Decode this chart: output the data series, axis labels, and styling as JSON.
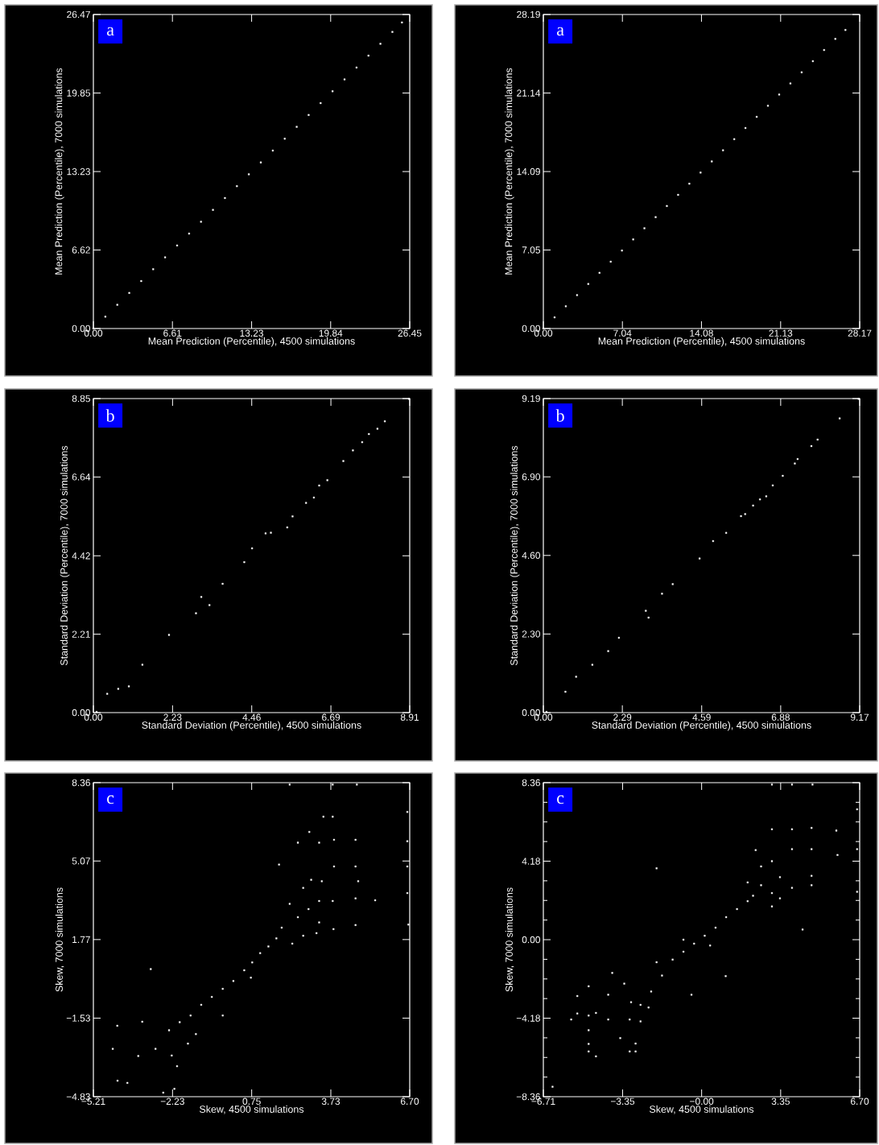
{
  "chart_data": [
    {
      "type": "scatter",
      "xlabel": "Mean Prediction (Percentile), 4500 simulations",
      "ylabel": "Mean Prediction (Percentile), 7000 simulations",
      "annotations": [
        "a"
      ],
      "marker": "square",
      "color": "#ffffff",
      "xlim": [
        0,
        26.45
      ],
      "ylim": [
        0,
        26.47
      ],
      "xticks": [
        {
          "value": 0,
          "label": "0.00"
        },
        {
          "value": 6.61,
          "label": "6.61"
        },
        {
          "value": 13.23,
          "label": "13.23"
        },
        {
          "value": 19.84,
          "label": "19.84"
        },
        {
          "value": 26.45,
          "label": "26.45"
        }
      ],
      "yticks": [
        {
          "value": 0,
          "label": "0.00"
        },
        {
          "value": 6.62,
          "label": "6.62"
        },
        {
          "value": 13.23,
          "label": "13.23"
        },
        {
          "value": 19.85,
          "label": "19.85"
        },
        {
          "value": 26.47,
          "label": "26.47"
        }
      ],
      "x": [
        0.0,
        1.0,
        2.0,
        3.0,
        4.0,
        5.0,
        6.0,
        7.0,
        8.0,
        9.0,
        10.0,
        11.0,
        12.0,
        13.0,
        14.0,
        15.0,
        16.0,
        17.0,
        18.0,
        19.0,
        20.0,
        21.0,
        22.0,
        23.0,
        24.0,
        25.0,
        25.8
      ],
      "values": [
        0.0,
        1.0,
        2.0,
        3.0,
        4.0,
        5.0,
        6.0,
        7.0,
        8.0,
        9.0,
        10.0,
        11.0,
        12.0,
        13.0,
        14.0,
        15.0,
        16.0,
        17.0,
        18.0,
        19.0,
        20.0,
        21.0,
        22.0,
        23.0,
        24.0,
        25.0,
        25.8
      ]
    },
    {
      "type": "scatter",
      "xlabel": "Mean Prediction (Percentile), 4500 simulations",
      "ylabel": "Mean Prediction (Percentile), 7000 simulations",
      "annotations": [
        "a"
      ],
      "marker": "square",
      "color": "#ffffff",
      "xlim": [
        0,
        28.17
      ],
      "ylim": [
        0,
        28.19
      ],
      "xticks": [
        {
          "value": 0,
          "label": "0.00"
        },
        {
          "value": 7.04,
          "label": "7.04"
        },
        {
          "value": 14.08,
          "label": "14.08"
        },
        {
          "value": 21.13,
          "label": "21.13"
        },
        {
          "value": 28.17,
          "label": "28.17"
        }
      ],
      "yticks": [
        {
          "value": 0,
          "label": "0.00"
        },
        {
          "value": 7.05,
          "label": "7.05"
        },
        {
          "value": 14.09,
          "label": "14.09"
        },
        {
          "value": 21.14,
          "label": "21.14"
        },
        {
          "value": 28.19,
          "label": "28.19"
        }
      ],
      "x": [
        0.0,
        1.0,
        2.0,
        3.0,
        4.0,
        5.0,
        6.0,
        7.0,
        8.0,
        9.0,
        10.0,
        11.0,
        12.0,
        13.0,
        14.0,
        15.0,
        16.0,
        17.0,
        18.0,
        19.0,
        20.0,
        21.0,
        22.0,
        23.0,
        24.0,
        25.0,
        26.0,
        26.9
      ],
      "values": [
        0.0,
        1.0,
        2.0,
        3.0,
        4.0,
        5.0,
        6.0,
        7.0,
        8.0,
        9.0,
        10.0,
        11.0,
        12.0,
        13.0,
        14.0,
        15.0,
        16.0,
        17.0,
        18.0,
        19.0,
        20.0,
        21.0,
        22.0,
        23.0,
        24.0,
        25.0,
        26.0,
        26.8
      ]
    },
    {
      "type": "scatter",
      "xlabel": "Standard Deviation (Percentile), 4500 simulations",
      "ylabel": "Standard Deviation (Percentile), 7000 simulations",
      "annotations": [
        "b"
      ],
      "marker": "square",
      "color": "#ffffff",
      "xlim": [
        0,
        8.91
      ],
      "ylim": [
        0,
        8.85
      ],
      "xticks": [
        {
          "value": 0,
          "label": "0.00"
        },
        {
          "value": 2.23,
          "label": "2.23"
        },
        {
          "value": 4.46,
          "label": "4.46"
        },
        {
          "value": 6.69,
          "label": "6.69"
        },
        {
          "value": 8.91,
          "label": "8.91"
        }
      ],
      "yticks": [
        {
          "value": 0,
          "label": "0.00"
        },
        {
          "value": 2.21,
          "label": "2.21"
        },
        {
          "value": 4.42,
          "label": "4.42"
        },
        {
          "value": 6.64,
          "label": "6.64"
        },
        {
          "value": 8.85,
          "label": "8.85"
        }
      ],
      "x": [
        0.09,
        0.39,
        0.7,
        1.0,
        1.38,
        2.13,
        2.89,
        3.04,
        3.27,
        3.64,
        4.25,
        4.47,
        4.85,
        5.0,
        5.46,
        5.61,
        5.99,
        6.21,
        6.36,
        6.59,
        7.04,
        7.31,
        7.57,
        7.76,
        8.0,
        8.21,
        8.89
      ],
      "values": [
        0.02,
        0.53,
        0.67,
        0.74,
        1.35,
        2.19,
        2.8,
        3.26,
        3.03,
        3.63,
        4.24,
        4.63,
        5.05,
        5.07,
        5.22,
        5.53,
        5.91,
        6.06,
        6.4,
        6.55,
        7.09,
        7.39,
        7.62,
        7.85,
        8.0,
        8.21,
        8.84
      ]
    },
    {
      "type": "scatter",
      "xlabel": "Standard Deviation (Percentile), 4500 simulations",
      "ylabel": "Standard Deviation (Percentile), 7000 simulations",
      "annotations": [
        "b"
      ],
      "marker": "square",
      "color": "#ffffff",
      "xlim": [
        0,
        9.17
      ],
      "ylim": [
        0,
        9.19
      ],
      "xticks": [
        {
          "value": 0,
          "label": "0.00"
        },
        {
          "value": 2.29,
          "label": "2.29"
        },
        {
          "value": 4.59,
          "label": "4.59"
        },
        {
          "value": 6.88,
          "label": "6.88"
        },
        {
          "value": 9.17,
          "label": "9.17"
        }
      ],
      "yticks": [
        {
          "value": 0,
          "label": "0.00"
        },
        {
          "value": 2.3,
          "label": "2.30"
        },
        {
          "value": 4.6,
          "label": "4.60"
        },
        {
          "value": 6.9,
          "label": "6.90"
        },
        {
          "value": 9.19,
          "label": "9.19"
        }
      ],
      "x": [
        0.09,
        0.64,
        0.95,
        1.42,
        1.88,
        2.19,
        2.97,
        3.05,
        3.44,
        3.75,
        4.53,
        4.92,
        5.3,
        5.73,
        5.85,
        6.08,
        6.28,
        6.46,
        6.65,
        6.94,
        7.29,
        7.37,
        7.77,
        7.95,
        8.59,
        9.14
      ],
      "values": [
        0.02,
        0.61,
        1.05,
        1.4,
        1.8,
        2.19,
        2.98,
        2.78,
        3.48,
        3.76,
        4.51,
        5.02,
        5.26,
        5.75,
        5.81,
        6.06,
        6.24,
        6.33,
        6.65,
        6.93,
        7.29,
        7.42,
        7.8,
        7.99,
        8.61,
        9.18
      ]
    },
    {
      "type": "scatter",
      "xlabel": "Skew, 4500 simulations",
      "ylabel": "Skew, 7000 simulations",
      "annotations": [
        "c"
      ],
      "marker": "square",
      "color": "#ffffff",
      "xlim": [
        -5.21,
        6.7
      ],
      "ylim": [
        -4.83,
        8.36
      ],
      "xticks": [
        {
          "value": -5.21,
          "label": "−5.21"
        },
        {
          "value": -2.23,
          "label": "−2.23"
        },
        {
          "value": 0.75,
          "label": "0.75"
        },
        {
          "value": 3.73,
          "label": "3.73"
        },
        {
          "value": 6.7,
          "label": "6.70"
        }
      ],
      "yticks": [
        {
          "value": -4.83,
          "label": "−4.83"
        },
        {
          "value": -1.53,
          "label": "−1.53"
        },
        {
          "value": 1.77,
          "label": "1.77"
        },
        {
          "value": 5.07,
          "label": "5.07"
        },
        {
          "value": 8.36,
          "label": "8.36"
        }
      ],
      "x": [
        -4.3,
        -3.93,
        -4.48,
        -4.31,
        -3.52,
        -3.05,
        -3.37,
        -2.87,
        -2.58,
        -2.16,
        -2.06,
        -2.26,
        -2.36,
        -1.96,
        -1.65,
        -1.35,
        -1.55,
        -1.15,
        -0.75,
        -0.34,
        0.06,
        0.47,
        0.77,
        1.07,
        1.38,
        1.68,
        -0.34,
        0.72,
        1.88,
        2.28,
        2.18,
        2.69,
        2.49,
        2.89,
        3.29,
        3.19,
        1.78,
        2.49,
        2.92,
        3.45,
        3.8,
        3.29,
        3.85,
        4.66,
        3.85,
        4.66,
        4.76,
        4.66,
        3.8,
        3.29,
        5.4,
        4.66,
        3.83,
        2.18,
        3.8,
        4.71,
        6.61,
        6.61,
        6.61,
        6.61,
        6.65,
        2.99,
        3.39,
        2.69
      ],
      "values": [
        -4.16,
        -4.25,
        -2.82,
        -1.85,
        -3.12,
        0.53,
        -1.68,
        -2.82,
        -4.66,
        -4.5,
        -3.55,
        -3.1,
        -2.04,
        -1.7,
        -2.6,
        -2.2,
        -1.42,
        -0.97,
        -0.64,
        -0.3,
        0.03,
        0.48,
        0.81,
        1.2,
        1.48,
        1.82,
        -1.42,
        0.17,
        2.27,
        1.6,
        3.27,
        1.93,
        2.71,
        3.05,
        2.49,
        2.04,
        4.92,
        5.84,
        6.29,
        6.93,
        6.93,
        5.84,
        5.96,
        5.96,
        4.84,
        4.84,
        4.22,
        3.5,
        3.39,
        3.39,
        3.42,
        2.38,
        2.21,
        8.28,
        8.28,
        8.28,
        7.13,
        5.9,
        4.84,
        3.72,
        2.4,
        4.28,
        4.22,
        3.94
      ]
    },
    {
      "type": "scatter",
      "xlabel": "Skew, 4500 simulations",
      "ylabel": "Skew, 7000 simulations",
      "annotations": [
        "c"
      ],
      "marker": "square",
      "color": "#ffffff",
      "xlim": [
        -6.71,
        6.7
      ],
      "ylim": [
        -8.36,
        8.36
      ],
      "xticks": [
        {
          "value": -6.71,
          "label": "−6.71"
        },
        {
          "value": -3.35,
          "label": "−3.35"
        },
        {
          "value": 0,
          "label": "−0.00"
        },
        {
          "value": 3.35,
          "label": "3.35"
        },
        {
          "value": 6.7,
          "label": "6.70"
        }
      ],
      "yticks": [
        {
          "value": -8.36,
          "label": "−8.36"
        },
        {
          "value": -4.18,
          "label": "−4.18"
        },
        {
          "value": 0,
          "label": "0.00"
        },
        {
          "value": 4.18,
          "label": "4.18"
        },
        {
          "value": 8.36,
          "label": "8.36"
        }
      ],
      "x": [
        -6.32,
        -5.53,
        -5.27,
        -5.27,
        -4.79,
        -4.79,
        -4.79,
        -4.79,
        -4.79,
        -4.48,
        -4.48,
        -3.96,
        -3.96,
        -3.79,
        -3.45,
        -3.05,
        -2.8,
        -2.8,
        -3.05,
        -2.59,
        -2.99,
        -3.28,
        -2.59,
        -2.25,
        -2.14,
        -1.91,
        -1.68,
        -1.23,
        -0.77,
        -0.32,
        0.13,
        0.59,
        1.04,
        1.5,
        1.95,
        -1.91,
        -0.43,
        1.02,
        4.28,
        -0.77,
        0.36,
        2.18,
        2.52,
        2.98,
        2.98,
        3.32,
        3.32,
        2.98,
        2.29,
        2.98,
        3.83,
        3.83,
        3.83,
        4.66,
        4.66,
        4.66,
        4.66,
        5.71,
        5.76,
        2.98,
        3.83,
        4.7,
        6.59,
        6.59,
        6.59,
        2.52,
        1.95
      ],
      "values": [
        -7.83,
        -4.25,
        -3.0,
        -3.93,
        -2.48,
        -4.04,
        -4.82,
        -5.55,
        -5.95,
        -6.21,
        -3.9,
        -4.25,
        -2.93,
        -1.77,
        -5.24,
        -5.95,
        -5.53,
        -5.95,
        -4.25,
        -4.35,
        -3.33,
        -2.34,
        -3.47,
        -3.61,
        -2.76,
        -1.2,
        -1.91,
        -1.06,
        -0.64,
        -0.21,
        0.21,
        0.64,
        1.2,
        1.63,
        2.05,
        3.8,
        -2.93,
        -1.94,
        0.54,
        0.0,
        -0.31,
        2.34,
        2.9,
        2.48,
        1.77,
        2.2,
        3.33,
        4.18,
        4.77,
        5.88,
        5.88,
        4.82,
        2.76,
        5.95,
        4.82,
        3.4,
        2.9,
        5.81,
        4.51,
        8.26,
        8.26,
        8.26,
        6.94,
        4.82,
        2.55,
        3.9,
        3.05
      ]
    }
  ]
}
